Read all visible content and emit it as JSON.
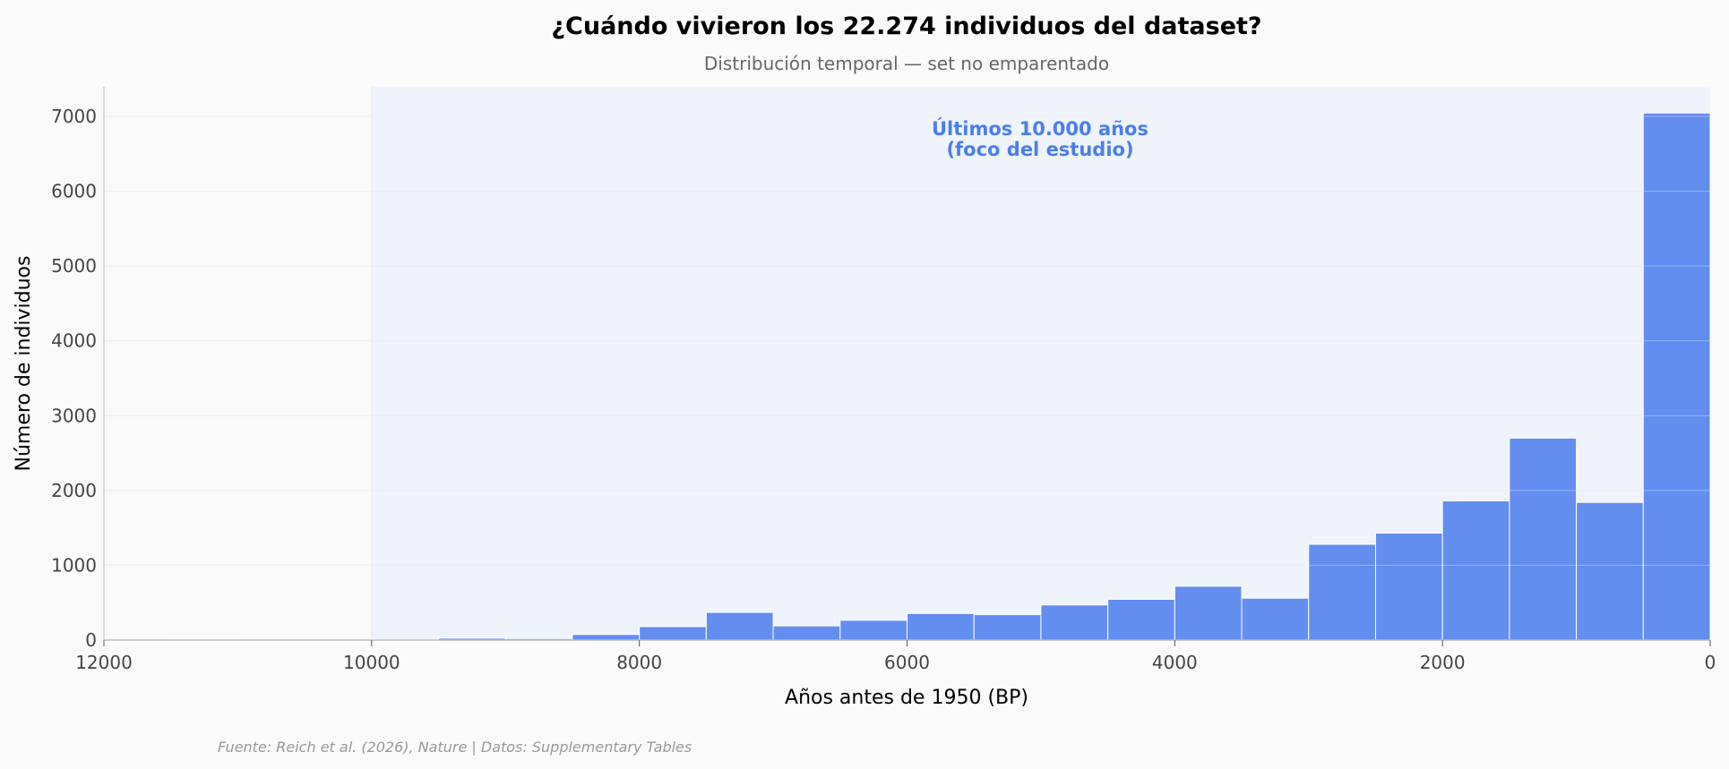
{
  "chart_data": {
    "type": "bar",
    "title": "¿Cuándo vivieron los 22.274 individuos del dataset?",
    "subtitle": "Distribución temporal — set no emparentado",
    "xlabel": "Años antes de 1950 (BP)",
    "ylabel": "Número de individuos",
    "xlim": [
      12000,
      0
    ],
    "ylim": [
      0,
      7400
    ],
    "x_reversed": true,
    "xticks": [
      "12000",
      "10000",
      "8000",
      "6000",
      "4000",
      "2000",
      "0"
    ],
    "yticks": [
      "0",
      "1000",
      "2000",
      "3000",
      "4000",
      "5000",
      "6000",
      "7000"
    ],
    "grid": true,
    "bin_width": 500,
    "bins_start": [
      12000,
      11500,
      11000,
      10500,
      10000,
      9500,
      9000,
      8500,
      8000,
      7500,
      7000,
      6500,
      6000,
      5500,
      5000,
      4500,
      4000,
      3500,
      3000,
      2500,
      2000,
      1500,
      1000,
      500
    ],
    "values": [
      0,
      5,
      8,
      8,
      10,
      25,
      20,
      75,
      180,
      370,
      190,
      265,
      355,
      340,
      470,
      545,
      720,
      560,
      1280,
      1430,
      1860,
      2700,
      1840,
      7045
    ],
    "highlight_region": {
      "from": 10000,
      "to": 0,
      "label_line1": "Últimos 10.000 años",
      "label_line2": "(foco del estudio)"
    },
    "source": "Fuente: Reich et al. (2026), Nature | Datos: Supplementary Tables",
    "colors": {
      "bar": "#638def",
      "highlight": "#eff3fb",
      "annotation": "#4a7fea",
      "background": "#fafafa"
    }
  }
}
